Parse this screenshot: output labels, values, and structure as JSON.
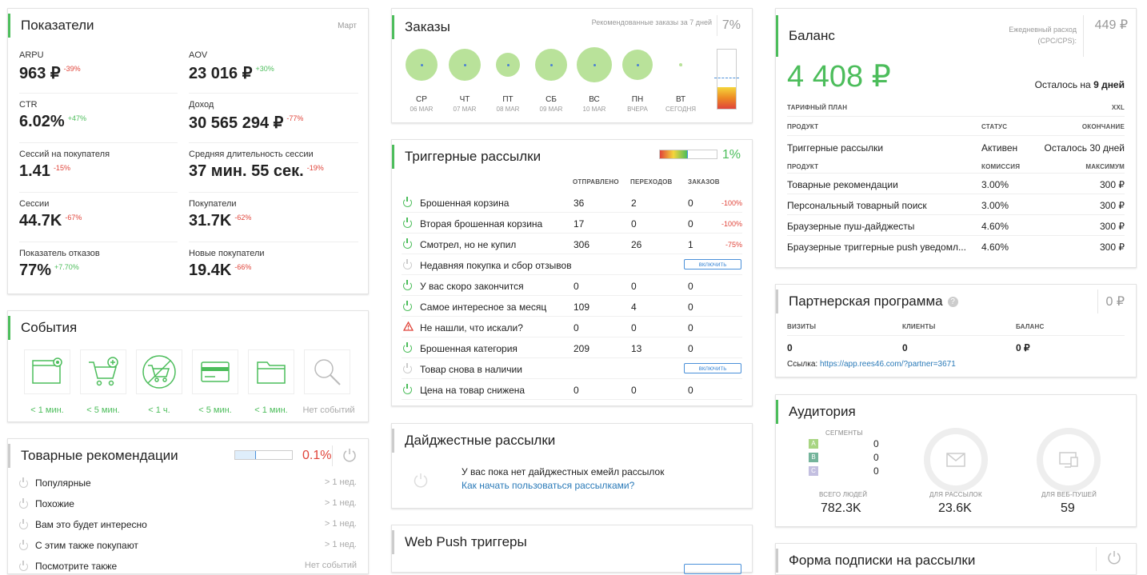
{
  "indicators": {
    "title": "Показатели",
    "period": "Март",
    "metrics": [
      {
        "label": "ARPU",
        "value": "963 ₽",
        "delta": "-39%",
        "dir": "down"
      },
      {
        "label": "AOV",
        "value": "23 016 ₽",
        "delta": "+30%",
        "dir": "up"
      },
      {
        "label": "CTR",
        "value": "6.02%",
        "delta": "+47%",
        "dir": "up"
      },
      {
        "label": "Доход",
        "value": "30 565 294 ₽",
        "delta": "-77%",
        "dir": "down"
      },
      {
        "label": "Сессий на покупателя",
        "value": "1.41",
        "delta": "-15%",
        "dir": "down"
      },
      {
        "label": "Средняя длительность сессии",
        "value": "37 мин. 55 сек.",
        "delta": "-19%",
        "dir": "down"
      },
      {
        "label": "Сессии",
        "value": "44.7K",
        "delta": "-67%",
        "dir": "down"
      },
      {
        "label": "Покупатели",
        "value": "31.7K",
        "delta": "-62%",
        "dir": "down"
      },
      {
        "label": "Показатель отказов",
        "value": "77%",
        "delta": "+7.70%",
        "dir": "up"
      },
      {
        "label": "Новые покупатели",
        "value": "19.4K",
        "delta": "-66%",
        "dir": "down"
      }
    ]
  },
  "events": {
    "title": "События",
    "items": [
      {
        "icon": "browser-eye-icon",
        "label": "< 1 мин."
      },
      {
        "icon": "cart-add-icon",
        "label": "< 5 мин."
      },
      {
        "icon": "cart-removed-icon",
        "label": "< 1 ч."
      },
      {
        "icon": "credit-card-icon",
        "label": "< 5 мин."
      },
      {
        "icon": "folder-icon",
        "label": "< 1 мин."
      },
      {
        "icon": "search-icon",
        "label": "Нет событий"
      }
    ]
  },
  "recs": {
    "title": "Товарные рекомендации",
    "percent": "0.1%",
    "progress": 0.1,
    "items": [
      {
        "label": "Популярные",
        "time": "> 1 нед."
      },
      {
        "label": "Похожие",
        "time": "> 1 нед."
      },
      {
        "label": "Вам это будет интересно",
        "time": "> 1 нед."
      },
      {
        "label": "С этим также покупают",
        "time": "> 1 нед."
      },
      {
        "label": "Посмотрите также",
        "time": "Нет событий"
      }
    ]
  },
  "orders": {
    "title": "Заказы",
    "recommended_label": "Рекомендованные заказы за 7 дней",
    "percent": "7%",
    "gauge_level": 0.07,
    "days": [
      {
        "day": "СР",
        "date": "06 MAR",
        "size": 40
      },
      {
        "day": "ЧТ",
        "date": "07 MAR",
        "size": 40
      },
      {
        "day": "ПТ",
        "date": "08 MAR",
        "size": 30
      },
      {
        "day": "СБ",
        "date": "09 MAR",
        "size": 40
      },
      {
        "day": "ВС",
        "date": "10 MAR",
        "size": 44
      },
      {
        "day": "ПН",
        "date": "ВЧЕРА",
        "size": 38
      },
      {
        "day": "ВТ",
        "date": "СЕГОДНЯ",
        "size": 4
      }
    ]
  },
  "triggers": {
    "title": "Триггерные рассылки",
    "percent": "1%",
    "progress": 0.01,
    "columns": [
      "ОТПРАВЛЕНО",
      "ПЕРЕХОДОВ",
      "ЗАКАЗОВ"
    ],
    "enable_label": "включить",
    "rows": [
      {
        "name": "Брошенная корзина",
        "status": "on",
        "sent": "36",
        "clicks": "2",
        "orders": "0",
        "delta": "-100%"
      },
      {
        "name": "Вторая брошенная корзина",
        "status": "on",
        "sent": "17",
        "clicks": "0",
        "orders": "0",
        "delta": "-100%"
      },
      {
        "name": "Смотрел, но не купил",
        "status": "on",
        "sent": "306",
        "clicks": "26",
        "orders": "1",
        "delta": "-75%"
      },
      {
        "name": "Недавняя покупка и сбор отзывов",
        "status": "off",
        "sent": "",
        "clicks": "",
        "orders": "",
        "delta": ""
      },
      {
        "name": "У вас скоро закончится",
        "status": "on",
        "sent": "0",
        "clicks": "0",
        "orders": "0",
        "delta": ""
      },
      {
        "name": "Самое интересное за месяц",
        "status": "on",
        "sent": "109",
        "clicks": "4",
        "orders": "0",
        "delta": ""
      },
      {
        "name": "Не нашли, что искали?",
        "status": "warn",
        "sent": "0",
        "clicks": "0",
        "orders": "0",
        "delta": ""
      },
      {
        "name": "Брошенная категория",
        "status": "on",
        "sent": "209",
        "clicks": "13",
        "orders": "0",
        "delta": ""
      },
      {
        "name": "Товар снова в наличии",
        "status": "off",
        "sent": "",
        "clicks": "",
        "orders": "",
        "delta": ""
      },
      {
        "name": "Цена на товар снижена",
        "status": "on",
        "sent": "0",
        "clicks": "0",
        "orders": "0",
        "delta": ""
      }
    ]
  },
  "digest": {
    "title": "Дайджестные рассылки",
    "empty_text": "У вас пока нет дайджестных емейл рассылок",
    "link": "Как начать пользоваться рассылками?"
  },
  "webpush": {
    "title": "Web Push триггеры"
  },
  "balance": {
    "title": "Баланс",
    "daily_label": "Ежедневный расход (CPC/CPS):",
    "daily_value": "449 ₽",
    "amount": "4 408 ₽",
    "remaining_prefix": "Осталось на",
    "remaining_value": "9 дней",
    "plan_label": "ТАРИФНЫЙ ПЛАН",
    "plan_value": "XXL",
    "h1": [
      "ПРОДУКТ",
      "СТАТУС",
      "ОКОНЧАНИЕ"
    ],
    "product_row": {
      "name": "Триггерные рассылки",
      "status": "Активен",
      "end": "Осталось 30 дней"
    },
    "h2": [
      "ПРОДУКТ",
      "КОМИССИЯ",
      "МАКСИМУМ"
    ],
    "rows": [
      {
        "name": "Товарные рекомендации",
        "fee": "3.00%",
        "max": "300 ₽"
      },
      {
        "name": "Персональный товарный поиск",
        "fee": "3.00%",
        "max": "300 ₽"
      },
      {
        "name": "Браузерные пуш-дайджесты",
        "fee": "4.60%",
        "max": "300 ₽"
      },
      {
        "name": "Браузерные триггерные push уведомл...",
        "fee": "4.60%",
        "max": "300 ₽"
      }
    ]
  },
  "partner": {
    "title": "Партнерская программа",
    "amount": "0 ₽",
    "cols": [
      "ВИЗИТЫ",
      "КЛИЕНТЫ",
      "БАЛАНС"
    ],
    "values": [
      "0",
      "0",
      "0 ₽"
    ],
    "link_label": "Ссылка:",
    "link": "https://app.rees46.com/?partner=3671"
  },
  "audience": {
    "title": "Аудитория",
    "segments_label": "СЕГМЕНТЫ",
    "segments": [
      {
        "letter": "A",
        "value": "0",
        "color": "#a8d582"
      },
      {
        "letter": "B",
        "value": "0",
        "color": "#74b49b"
      },
      {
        "letter": "C",
        "value": "0",
        "color": "#c3bfe0"
      }
    ],
    "total_label": "ВСЕГО ЛЮДЕЙ",
    "total": "782.3K",
    "mail_label": "ДЛЯ РАССЫЛОК",
    "mail": "23.6K",
    "push_label": "ДЛЯ ВЕБ-ПУШЕЙ",
    "push": "59"
  },
  "subscribe": {
    "title": "Форма подписки на рассылки"
  },
  "colors": {
    "accent": "#4cbd5b",
    "danger": "#e0443a",
    "link": "#2a7ab8"
  }
}
